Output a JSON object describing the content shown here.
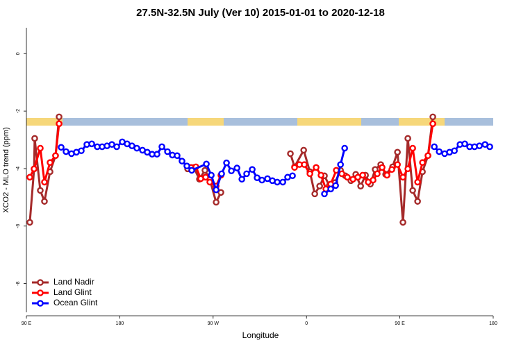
{
  "chart_data": {
    "type": "line",
    "title": "27.5N-32.5N July (Ver 10)   2015-01-01 to 2020-12-18",
    "x_label": "Longitude",
    "y_label": "XCO2 - MLO trend (ppm)",
    "xlim": [
      90,
      540
    ],
    "xticks": [
      {
        "value": 90,
        "label": "90 E"
      },
      180,
      {
        "value": 270,
        "label": "90 W"
      },
      {
        "value": 360,
        "label": "0"
      },
      {
        "value": 450,
        "label": "90 E"
      },
      {
        "value": 540,
        "label": "180"
      }
    ],
    "ylim": [
      -9.0,
      0.9
    ],
    "yticks": [
      0,
      -2,
      -4,
      -6,
      -8
    ],
    "legend": "bottom-left",
    "series": [
      {
        "name": "Land Nadir",
        "color": "#a52a2a",
        "x": [
          93.3,
          97.4,
          98.0,
          103.4,
          107.4,
          112.8,
          118.1,
          121.5,
          null,
          245.4,
          251.4,
          256.8,
          262.1,
          266.8,
          272.9,
          277.5,
          null,
          344.5,
          348.5,
          357.3,
          363.3,
          368.0,
          372.7,
          377.3,
          382.0,
          387.4,
          392.8,
          397.4,
          402.8,
          407.5,
          412.2,
          416.9,
          421.6,
          426.2,
          431.6,
          436.3,
          443.0,
          447.7,
          453.0,
          457.7,
          462.4,
          467.1,
          471.8,
          477.1,
          481.8
        ],
        "values": [
          -5.87,
          -4.01,
          -2.95,
          -4.76,
          -5.14,
          -4.11,
          -3.55,
          -2.2,
          null,
          -4.01,
          -3.96,
          -4.37,
          -4.06,
          -4.37,
          -5.17,
          -4.83,
          null,
          -3.48,
          -3.94,
          -3.36,
          -4.11,
          -4.88,
          -4.61,
          -4.25,
          -4.59,
          -4.49,
          -4.06,
          -4.25,
          -4.42,
          -4.2,
          -4.61,
          -4.23,
          -4.54,
          -4.03,
          -3.86,
          -4.2,
          -3.94,
          -3.43,
          -5.87,
          -2.95,
          -4.76,
          -5.14,
          -4.11,
          -3.55,
          -2.2
        ]
      },
      {
        "name": "Land Glint",
        "color": "#ff0000",
        "x": [
          93.3,
          97.4,
          103.4,
          107.4,
          112.8,
          118.1,
          121.5,
          null,
          248.7,
          253.4,
          258.1,
          262.8,
          266.8,
          272.9,
          277.5,
          null,
          348.5,
          353.2,
          357.9,
          363.3,
          369.3,
          374.0,
          378.7,
          383.4,
          388.7,
          394.1,
          399.4,
          404.8,
          409.5,
          414.2,
          419.5,
          424.2,
          428.2,
          432.9,
          437.6,
          442.3,
          447.7,
          453.0,
          457.7,
          462.4,
          467.1,
          471.8,
          477.1,
          481.8
        ],
        "values": [
          -4.3,
          -4.01,
          -3.29,
          -4.47,
          -3.79,
          -3.55,
          -2.44,
          null,
          -3.96,
          -3.94,
          -4.35,
          -4.3,
          -4.47,
          -4.61,
          -4.23,
          null,
          -3.96,
          -3.86,
          -3.86,
          -4.18,
          -3.96,
          -4.23,
          -4.71,
          -4.54,
          -4.06,
          -4.18,
          -4.3,
          -4.37,
          -4.3,
          -4.23,
          -4.47,
          -4.4,
          -4.18,
          -3.96,
          -4.23,
          -4.03,
          -3.86,
          -4.3,
          -4.01,
          -3.29,
          -4.47,
          -3.79,
          -3.55,
          -2.44
        ]
      },
      {
        "name": "Ocean Glint",
        "color": "#0000ff",
        "x": [
          123.5,
          128.2,
          133.5,
          138.2,
          142.9,
          148.3,
          153.0,
          158.3,
          163.0,
          167.7,
          172.4,
          177.1,
          182.4,
          187.1,
          191.8,
          196.5,
          201.9,
          206.5,
          211.2,
          215.9,
          220.6,
          226.0,
          230.7,
          235.3,
          240.0,
          244.7,
          249.4,
          263.5,
          268.2,
          272.9,
          278.2,
          282.9,
          287.6,
          293.0,
          297.7,
          302.3,
          307.7,
          312.4,
          317.1,
          322.4,
          327.1,
          331.8,
          337.2,
          341.8,
          346.5,
          null,
          377.3,
          383.4,
          388.1,
          392.8,
          396.8,
          null,
          483.2,
          487.9,
          493.2,
          497.9,
          502.6,
          508.0,
          512.6,
          517.3,
          522.0,
          526.7,
          532.1,
          536.7
        ],
        "values": [
          -3.26,
          -3.41,
          -3.48,
          -3.43,
          -3.38,
          -3.16,
          -3.14,
          -3.24,
          -3.24,
          -3.21,
          -3.16,
          -3.24,
          -3.07,
          -3.14,
          -3.21,
          -3.29,
          -3.36,
          -3.43,
          -3.5,
          -3.5,
          -3.24,
          -3.41,
          -3.53,
          -3.55,
          -3.74,
          -3.91,
          -4.06,
          -3.84,
          -4.23,
          -4.74,
          -4.18,
          -3.8,
          -4.08,
          -3.98,
          -4.37,
          -4.18,
          -4.03,
          -4.32,
          -4.4,
          -4.35,
          -4.42,
          -4.47,
          -4.47,
          -4.3,
          -4.25,
          null,
          -4.88,
          -4.71,
          -4.59,
          -3.86,
          -3.29,
          null,
          -3.24,
          -3.41,
          -3.48,
          -3.43,
          -3.38,
          -3.16,
          -3.14,
          -3.24,
          -3.24,
          -3.21,
          -3.16,
          -3.24
        ]
      }
    ]
  }
}
